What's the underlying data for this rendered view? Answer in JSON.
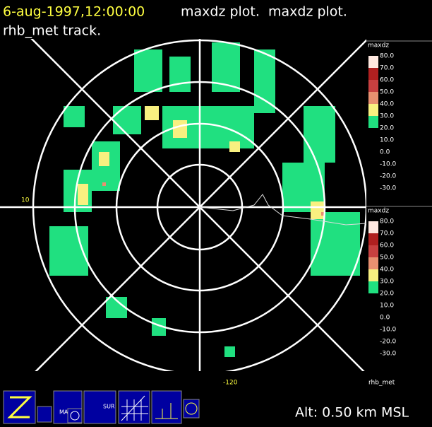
{
  "header": {
    "datetime": "6-aug-1997,12:00:00",
    "plot_title": "maxdz plot.  maxdz plot.",
    "track": "rhb_met track."
  },
  "colorbars": [
    {
      "label": "maxdz",
      "ticks": [
        "80.0",
        "70.0",
        "60.0",
        "50.0",
        "40.0",
        "30.0",
        "20.0",
        "10.0",
        "0.0",
        "-10.0",
        "-20.0",
        "-30.0"
      ]
    },
    {
      "label": "maxdz",
      "ticks": [
        "80.0",
        "70.0",
        "60.0",
        "50.0",
        "40.0",
        "30.0",
        "20.0",
        "10.0",
        "0.0",
        "-10.0",
        "-20.0",
        "-30.0"
      ]
    }
  ],
  "axis_labels": {
    "left": "10",
    "bottom": "-120"
  },
  "footer_label": "rhb_met",
  "altitude": "Alt: 0.50 km MSL",
  "toolbar": {
    "map": "MAP",
    "sur": "SUR"
  }
}
